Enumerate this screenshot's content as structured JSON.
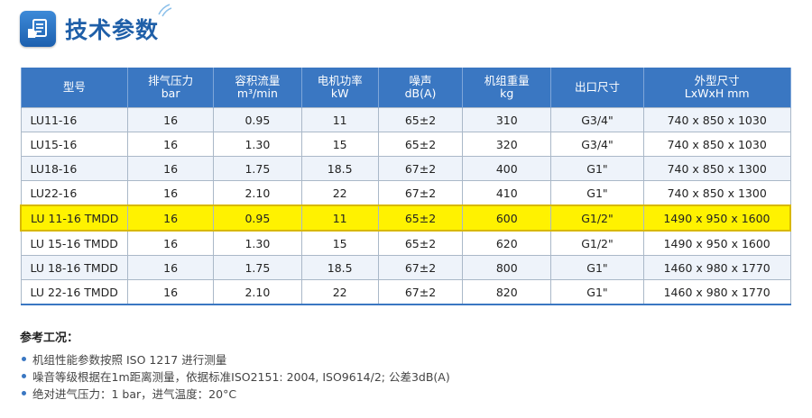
{
  "header": {
    "title": "技术参数"
  },
  "table": {
    "columns": [
      {
        "line1": "型号",
        "line2": ""
      },
      {
        "line1": "排气压力",
        "line2": "bar"
      },
      {
        "line1": "容积流量",
        "line2": "m³/min"
      },
      {
        "line1": "电机功率",
        "line2": "kW"
      },
      {
        "line1": "噪声",
        "line2": "dB(A)"
      },
      {
        "line1": "机组重量",
        "line2": "kg"
      },
      {
        "line1": "出口尺寸",
        "line2": ""
      },
      {
        "line1": "外型尺寸",
        "line2": "LxWxH mm"
      }
    ],
    "rows": [
      [
        "LU11-16",
        "16",
        "0.95",
        "11",
        "65±2",
        "310",
        "G3/4\"",
        "740 x 850 x 1030"
      ],
      [
        "LU15-16",
        "16",
        "1.30",
        "15",
        "65±2",
        "320",
        "G3/4\"",
        "740 x 850 x 1030"
      ],
      [
        "LU18-16",
        "16",
        "1.75",
        "18.5",
        "67±2",
        "400",
        "G1\"",
        "740 x 850 x 1300"
      ],
      [
        "LU22-16",
        "16",
        "2.10",
        "22",
        "67±2",
        "410",
        "G1\"",
        "740 x 850 x 1300"
      ],
      [
        "LU 11-16 TMDD",
        "16",
        "0.95",
        "11",
        "65±2",
        "600",
        "G1/2\"",
        "1490 x 950 x 1600"
      ],
      [
        "LU 15-16 TMDD",
        "16",
        "1.30",
        "15",
        "65±2",
        "620",
        "G1/2\"",
        "1490 x 950 x 1600"
      ],
      [
        "LU 18-16 TMDD",
        "16",
        "1.75",
        "18.5",
        "67±2",
        "800",
        "G1\"",
        "1460 x 980 x 1770"
      ],
      [
        "LU 22-16 TMDD",
        "16",
        "2.10",
        "22",
        "67±2",
        "820",
        "G1\"",
        "1460 x 980 x 1770"
      ]
    ],
    "highlight_row": 4,
    "colors": {
      "header": "#3a77c2",
      "highlight": "#fff200"
    }
  },
  "notes": {
    "title": "参考工况：",
    "items": [
      "机组性能参数按照 ISO 1217 进行测量",
      "噪音等级根据在1m距离测量，依据标准ISO2151: 2004, ISO9614/2; 公差3dB(A)",
      "绝对进气压力：1 bar，进气温度：20°C"
    ]
  },
  "icons": {
    "title_icon": "document-hand-icon"
  }
}
